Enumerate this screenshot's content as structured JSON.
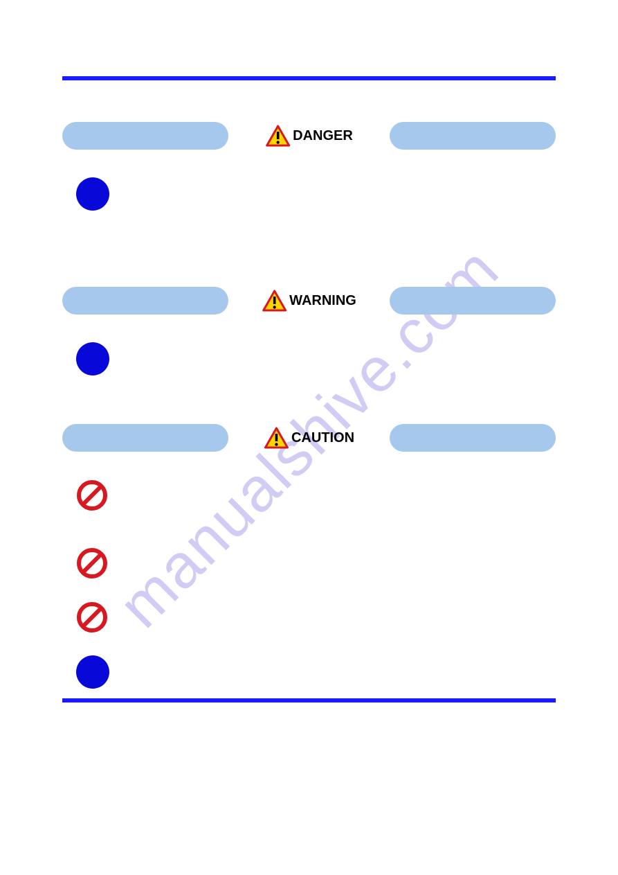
{
  "colors": {
    "rule": "#1a1aff",
    "pill": "#a6c8ec",
    "mandatory_circle": "#0808d8",
    "prohibit_stroke": "#d81820",
    "triangle_fill": "#ffd500",
    "triangle_stroke": "#d81820",
    "triangle_exclaim": "#000000",
    "watermark": "rgba(120,110,220,0.35)"
  },
  "watermark_text": "manualshive.com",
  "sections": [
    {
      "label": "DANGER",
      "items": [
        {
          "icon": "mandatory"
        }
      ],
      "trailing_space": "lg"
    },
    {
      "label": "WARNING",
      "items": [
        {
          "icon": "mandatory"
        }
      ],
      "trailing_space": "md"
    },
    {
      "label": "CAUTION",
      "items": [
        {
          "icon": "prohibit",
          "extra_height": 70
        },
        {
          "icon": "prohibit"
        },
        {
          "icon": "prohibit"
        },
        {
          "icon": "mandatory"
        }
      ],
      "trailing_space": "md"
    }
  ]
}
